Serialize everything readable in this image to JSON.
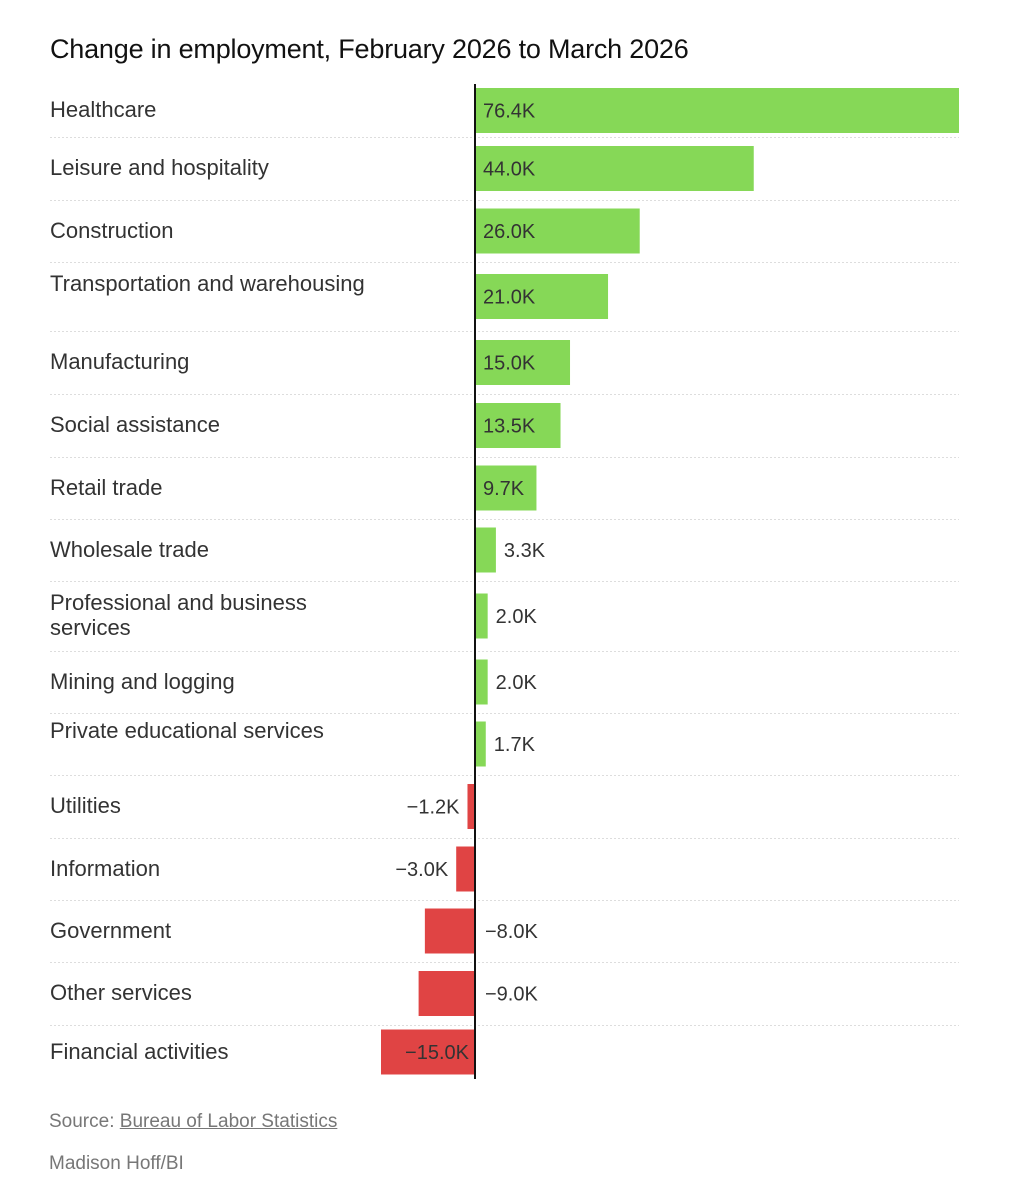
{
  "header": {
    "title": "Change in employment, February 2026 to March 2026"
  },
  "chart_data": {
    "type": "bar",
    "orientation": "horizontal",
    "categories": [
      "Healthcare",
      "Leisure and hospitality",
      "Construction",
      "Transportation and warehousing",
      "Manufacturing",
      "Social assistance",
      "Retail trade",
      "Wholesale trade",
      "Professional and business services",
      "Mining and logging",
      "Private educational services",
      "Utilities",
      "Information",
      "Government",
      "Other services",
      "Financial activities"
    ],
    "values": [
      76.4,
      44.0,
      26.0,
      21.0,
      15.0,
      13.5,
      9.7,
      3.3,
      2.0,
      2.0,
      1.7,
      -1.2,
      -3.0,
      -8.0,
      -9.0,
      -15.0
    ],
    "data_labels": [
      "76.4K",
      "44.0K",
      "26.0K",
      "21.0K",
      "15.0K",
      "13.5K",
      "9.7K",
      "3.3K",
      "2.0K",
      "2.0K",
      "1.7K",
      "−1.2K",
      "−3.0K",
      "−8.0K",
      "−9.0K",
      "−15.0K"
    ],
    "xlim": [
      -15.0,
      76.4
    ],
    "colors": {
      "positive": "#86d857",
      "negative": "#e04444",
      "axis": "#111111",
      "grid": "#dddddd"
    }
  },
  "footer": {
    "source_prefix": "Source: ",
    "source_link": "Bureau of Labor Statistics",
    "credit": "Madison Hoff/BI"
  }
}
